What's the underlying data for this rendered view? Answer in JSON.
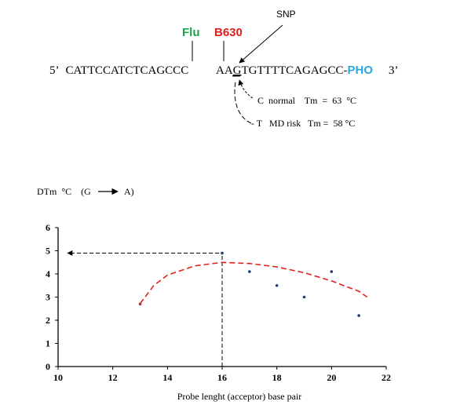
{
  "probe": {
    "snp_label": "SNP",
    "flu_label": "Flu",
    "b630_label": "B630",
    "strand_5": "5’",
    "seq_left": "CATTCCATCTCAGCCC",
    "seq_right_pre": "AA",
    "seq_snp_base": "G",
    "seq_right_post": "TGTTTTCAGAGCC-",
    "pho_label": "PHO",
    "strand_3": "3’",
    "normal_text": "C  normal    Tm  =  63  °C",
    "risk_text": "- T   MD risk   Tm =  58 °C",
    "colors": {
      "flu": "#1aa34a",
      "b630": "#e0201b",
      "pho": "#2aa7e0"
    }
  },
  "chart_data": {
    "type": "scatter",
    "ylabel": "DTm  °C    (G",
    "ylabel_arrow_to": "A)",
    "xlabel": "Probe lenght (acceptor) base pair",
    "xlim": [
      10,
      22
    ],
    "ylim": [
      0,
      6
    ],
    "x_ticks": [
      "10",
      "12",
      "14",
      "16",
      "18",
      "20",
      "22"
    ],
    "y_ticks": [
      "0",
      "1",
      "2",
      "3",
      "4",
      "5",
      "6"
    ],
    "grid": false,
    "series": [
      {
        "points": [
          [
            13,
            2.7
          ],
          [
            16,
            4.9
          ],
          [
            17,
            4.1
          ],
          [
            18,
            3.5
          ],
          [
            19,
            3.0
          ],
          [
            20,
            4.1
          ],
          [
            21,
            2.2
          ]
        ],
        "colors": [
          "#c0282d",
          "#1f3d6e",
          "#1f3d6e",
          "#1f3d6e",
          "#1f3d6e",
          "#1f3d6e",
          "#1f3d6e"
        ]
      }
    ],
    "trend_line": {
      "color": "#e0201b",
      "points": [
        [
          13.0,
          2.72
        ],
        [
          13.5,
          3.5
        ],
        [
          14.0,
          3.95
        ],
        [
          15.0,
          4.35
        ],
        [
          16.0,
          4.5
        ],
        [
          17.0,
          4.45
        ],
        [
          18.0,
          4.3
        ],
        [
          19.0,
          4.05
        ],
        [
          20.0,
          3.7
        ],
        [
          21.0,
          3.25
        ],
        [
          21.3,
          3.0
        ]
      ]
    },
    "annotations": {
      "optimum_x": 16,
      "optimum_y": 4.9
    }
  }
}
